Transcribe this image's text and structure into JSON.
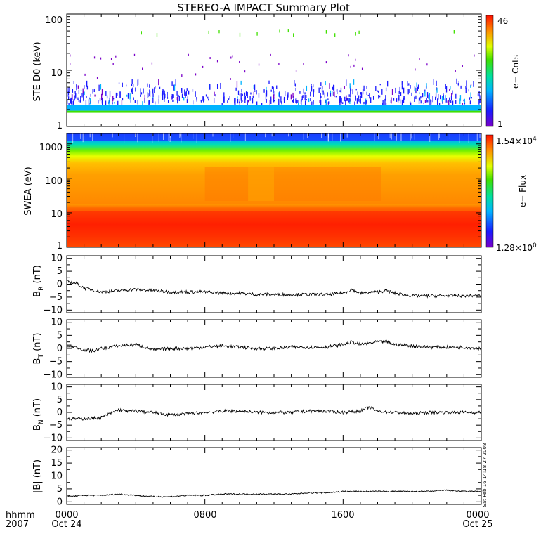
{
  "title": "STEREO-A IMPACT Summary Plot",
  "footer": {
    "time_label": "hhmm",
    "year_label": "2007",
    "x_ticks": [
      "0000",
      "0800",
      "1600",
      "0000"
    ],
    "x_dates": [
      "Oct 24",
      "Oct 25"
    ],
    "timestamp": "Sat Feb 16 14:18:27 2008"
  },
  "chart_data": [
    {
      "type": "heatmap",
      "ylabel": "STE D0 (keV)",
      "ylog": true,
      "ylim": [
        1,
        100
      ],
      "y_ticks": [
        "1",
        "10",
        "100"
      ],
      "colorbar": {
        "label": "e− Cnts",
        "max": "46",
        "min": "1"
      },
      "dense_band_kev": [
        1.8,
        2.4
      ],
      "sparse_counts_extend_to_kev": 6,
      "colors": [
        "#7a00c8",
        "#1a1aff",
        "#00b4ff",
        "#00e0a0",
        "#40e000",
        "#e0ff00",
        "#ff9000",
        "#ff1000"
      ]
    },
    {
      "type": "heatmap",
      "ylabel": "SWEA (eV)",
      "ylog": true,
      "ylim": [
        1,
        2000
      ],
      "y_ticks": [
        "1",
        "10",
        "100",
        "1000"
      ],
      "colorbar": {
        "label": "e− Flux",
        "max_mantissa": "1.54×10",
        "max_exp": "4",
        "min_mantissa": "1.28×10",
        "min_exp": "0"
      }
    },
    {
      "type": "line",
      "ylabel_main": "B",
      "ylabel_sub": "R",
      "ylabel_unit": " (nT)",
      "ylim": [
        -11,
        11
      ],
      "y_ticks": [
        "10",
        "5",
        "0",
        "−5",
        "−10"
      ],
      "x_hours": [
        0,
        0.5,
        1,
        2,
        3,
        4,
        5,
        6,
        7,
        8,
        9,
        10,
        11,
        12,
        13,
        14,
        15,
        16,
        16.5,
        17,
        18,
        18.5,
        19,
        20,
        21,
        22,
        23,
        24
      ],
      "values": [
        1,
        0.5,
        -1.5,
        -3,
        -2.5,
        -2,
        -2.5,
        -3,
        -3,
        -3,
        -3.5,
        -3.5,
        -4,
        -4,
        -4,
        -4,
        -4,
        -3.5,
        -2,
        -3.5,
        -3,
        -2.5,
        -3.5,
        -4.5,
        -4.5,
        -4.5,
        -4.5,
        -4.5
      ]
    },
    {
      "type": "line",
      "ylabel_main": "B",
      "ylabel_sub": "T",
      "ylabel_unit": " (nT)",
      "ylim": [
        -11,
        11
      ],
      "y_ticks": [
        "10",
        "5",
        "0",
        "−5",
        "−10"
      ],
      "x_hours": [
        0,
        0.5,
        1,
        1.5,
        2,
        3,
        4,
        5,
        6,
        7,
        8,
        9,
        10,
        11,
        12,
        13,
        14,
        15,
        16,
        16.5,
        17,
        18,
        18.5,
        19,
        20,
        21,
        22,
        23,
        24
      ],
      "values": [
        1,
        0.5,
        -0.5,
        -1,
        0,
        1,
        1.5,
        -0.5,
        0,
        0,
        0.5,
        1,
        0.5,
        0,
        0,
        0.5,
        0.5,
        0.5,
        1.5,
        2.5,
        1.5,
        2.5,
        2.5,
        1.5,
        1,
        0.5,
        0.5,
        0.5,
        0
      ]
    },
    {
      "type": "line",
      "ylabel_main": "B",
      "ylabel_sub": "N",
      "ylabel_unit": " (nT)",
      "ylim": [
        -11,
        11
      ],
      "y_ticks": [
        "10",
        "5",
        "0",
        "−5",
        "−10"
      ],
      "x_hours": [
        0,
        1,
        2,
        3,
        3.5,
        4,
        5,
        6,
        7,
        8,
        9,
        10,
        11,
        12,
        13,
        14,
        15,
        16,
        17,
        17.5,
        18,
        19,
        20,
        21,
        22,
        23,
        24
      ],
      "values": [
        -2.5,
        -2.5,
        -2,
        1,
        0.5,
        0.5,
        0,
        -1,
        -0.5,
        0,
        0.5,
        0.5,
        0,
        0,
        0,
        0.5,
        0.5,
        0,
        0.5,
        2,
        0.5,
        0,
        -0.5,
        0,
        0,
        0,
        0
      ]
    },
    {
      "type": "line",
      "ylabel": "|B| (nT)",
      "ylim": [
        -1,
        21
      ],
      "y_ticks": [
        "20",
        "15",
        "10",
        "5",
        "0"
      ],
      "x_hours": [
        0,
        1,
        2,
        3,
        4,
        5,
        6,
        7,
        8,
        9,
        10,
        11,
        12,
        13,
        14,
        15,
        16,
        17,
        18,
        19,
        20,
        21,
        22,
        23,
        24
      ],
      "values": [
        2,
        2.5,
        2.5,
        3,
        2.5,
        2,
        2,
        2.5,
        2.5,
        3,
        3,
        3,
        3,
        3,
        3.5,
        3.5,
        4,
        4,
        4,
        4,
        4,
        4,
        4.5,
        4,
        4
      ]
    }
  ]
}
